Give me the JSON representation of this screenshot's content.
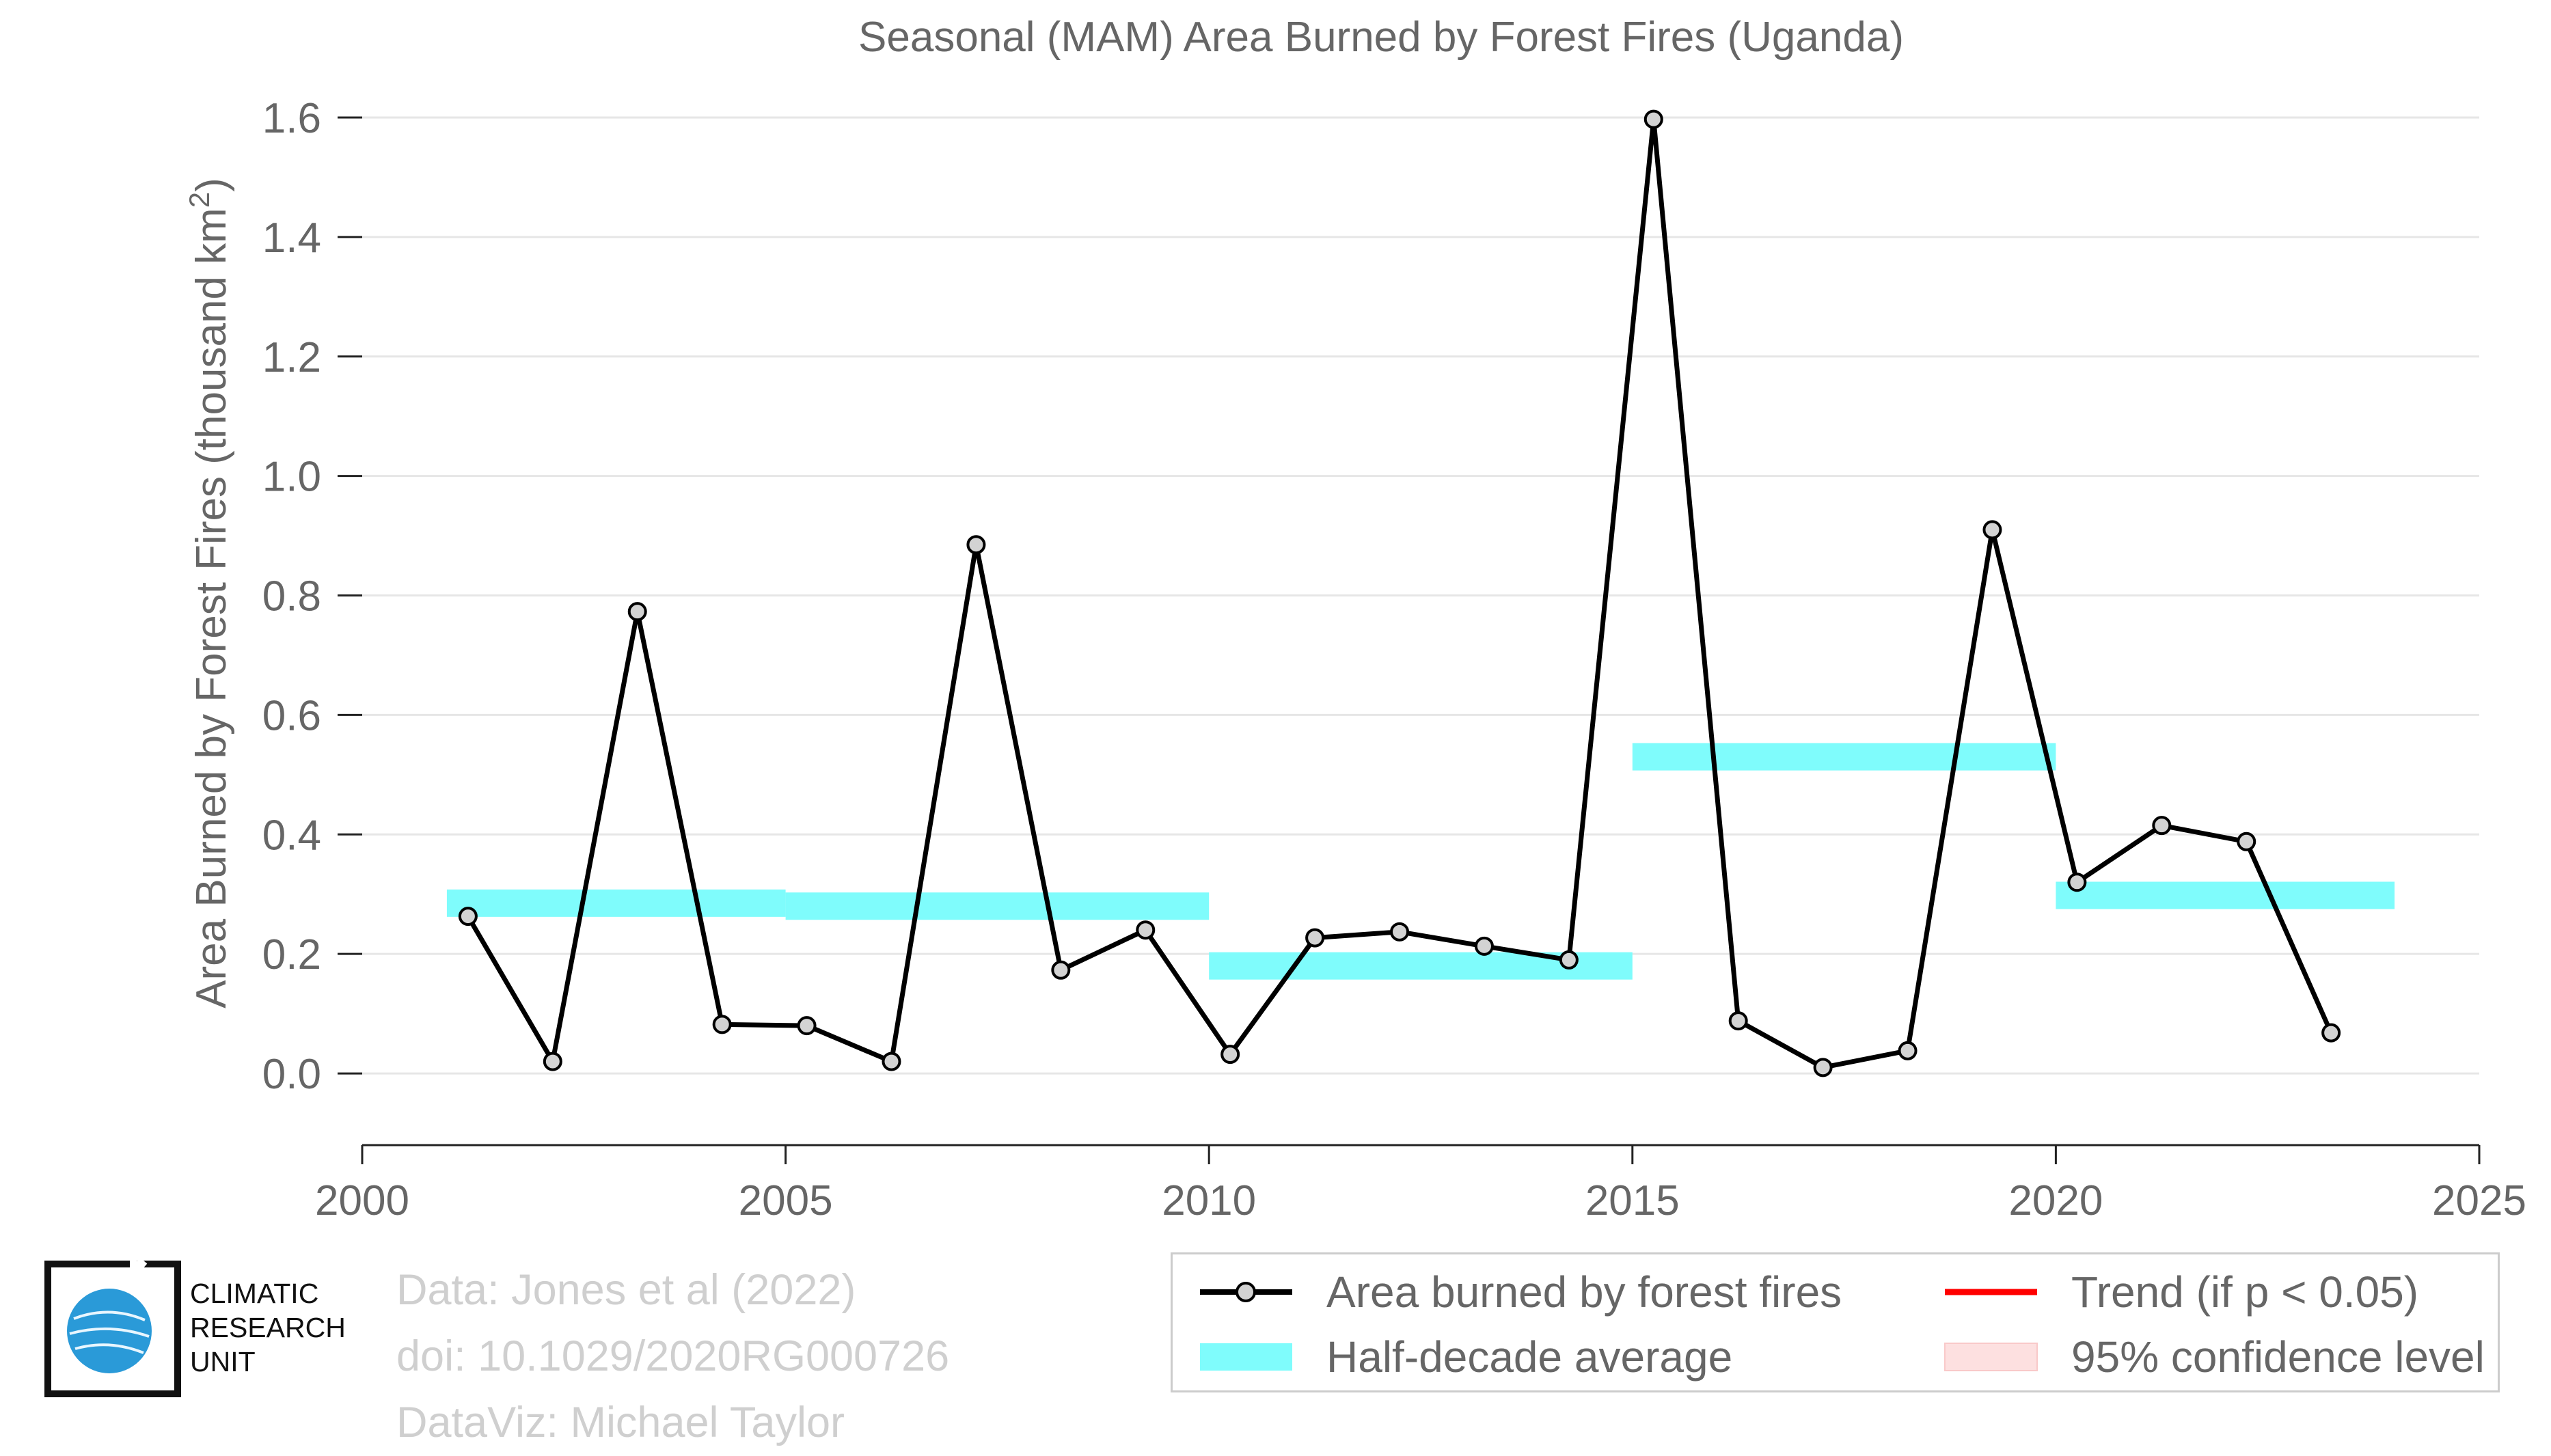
{
  "chart_data": {
    "type": "line",
    "title": "Seasonal (MAM) Area Burned by Forest Fires (Uganda)",
    "xlabel": "",
    "ylabel": "Area Burned by Forest Fires (thousand km²)",
    "xlim": [
      2000,
      2025
    ],
    "ylim": [
      -0.12,
      1.6
    ],
    "xticks": [
      2000,
      2005,
      2010,
      2015,
      2020,
      2025
    ],
    "yticks": [
      0.0,
      0.2,
      0.4,
      0.6,
      0.8,
      1.0,
      1.2,
      1.4,
      1.6
    ],
    "ytick_labels": [
      "0.0",
      "0.2",
      "0.4",
      "0.6",
      "0.8",
      "1.0",
      "1.2",
      "1.4",
      "1.6"
    ],
    "grid": true,
    "series": [
      {
        "name": "Area burned by forest fires",
        "color": "#000000",
        "marker_fill": "#d3d3d3",
        "x": [
          2001.25,
          2002.25,
          2003.25,
          2004.25,
          2005.25,
          2006.25,
          2007.25,
          2008.25,
          2009.25,
          2010.25,
          2011.25,
          2012.25,
          2013.25,
          2014.25,
          2015.25,
          2016.25,
          2017.25,
          2018.25,
          2019.25,
          2020.25,
          2021.25,
          2022.25,
          2023.25
        ],
        "y": [
          0.263,
          0.02,
          0.773,
          0.082,
          0.08,
          0.02,
          0.885,
          0.173,
          0.24,
          0.032,
          0.227,
          0.237,
          0.213,
          0.19,
          1.597,
          0.088,
          0.01,
          0.038,
          0.91,
          0.32,
          0.415,
          0.388,
          0.068
        ]
      }
    ],
    "half_decade_average": {
      "name": "Half-decade average",
      "color": "#7ffcfc",
      "segments": [
        {
          "x0": 2001,
          "x1": 2005,
          "y": 0.285
        },
        {
          "x0": 2005,
          "x1": 2010,
          "y": 0.28
        },
        {
          "x0": 2010,
          "x1": 2015,
          "y": 0.18
        },
        {
          "x0": 2015,
          "x1": 2020,
          "y": 0.53
        },
        {
          "x0": 2020,
          "x1": 2024,
          "y": 0.298
        }
      ]
    },
    "legend": {
      "placement": "bottom-right",
      "items": [
        {
          "label": "Area burned by forest fires",
          "kind": "line-marker",
          "color": "#000000"
        },
        {
          "label": "Trend (if p < 0.05)",
          "kind": "line",
          "color": "#ff0000"
        },
        {
          "label": "Half-decade average",
          "kind": "band",
          "color": "#7ffcfc"
        },
        {
          "label": "95% confidence level",
          "kind": "band",
          "color": "#fde0e0"
        }
      ]
    }
  },
  "credits": {
    "line1": "Data: Jones et al (2022)",
    "line2": "doi: 10.1029/2020RG000726",
    "line3": "DataViz: Michael Taylor"
  },
  "logo": {
    "line1": "CLIMATIC",
    "line2": "RESEARCH",
    "line3": "UNIT",
    "globe_color": "#2a9ad8"
  }
}
